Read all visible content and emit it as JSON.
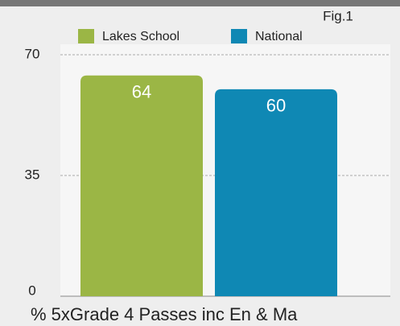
{
  "chart_data": {
    "type": "bar",
    "annotation": "Fig.1",
    "categories": [
      "% 5xGrade 4 Passes inc En & Ma"
    ],
    "series": [
      {
        "name": "Lakes School",
        "color": "#9bb645",
        "values": [
          64
        ]
      },
      {
        "name": "National",
        "color": "#0f88b4",
        "values": [
          60
        ]
      }
    ],
    "ylim": [
      0,
      70
    ],
    "yticks": [
      0,
      35,
      70
    ],
    "grid": true
  }
}
